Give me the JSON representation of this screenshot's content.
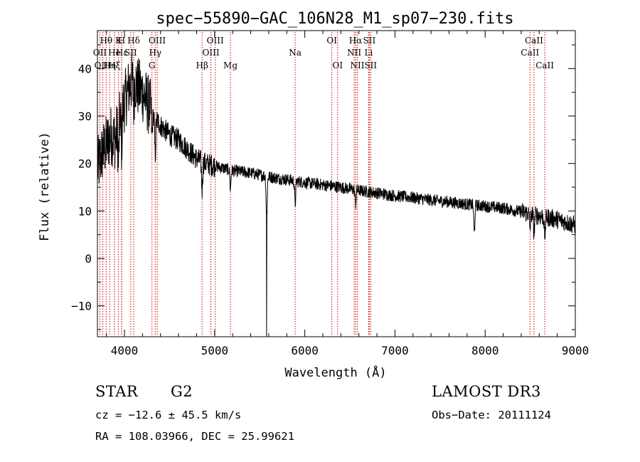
{
  "chart_data": {
    "type": "line",
    "title": "spec−55890−GAC_106N28_M1_sp07−230.fits",
    "xlabel": "Wavelength (Å)",
    "ylabel": "Flux (relative)",
    "xlim": [
      3700,
      9000
    ],
    "ylim": [
      -16.5,
      48
    ],
    "x_ticks": [
      4000,
      5000,
      6000,
      7000,
      8000,
      9000
    ],
    "y_ticks": [
      -10,
      0,
      10,
      20,
      30,
      40
    ],
    "x_tick_labels": [
      "4000",
      "5000",
      "6000",
      "7000",
      "8000",
      "9000"
    ],
    "y_tick_labels": [
      "−10",
      "0",
      "10",
      "20",
      "30",
      "40"
    ],
    "line_color": "#cc0000",
    "spectrum_color": "#000000",
    "lines": [
      {
        "name": "Hθ",
        "wave": 3797,
        "row": 0
      },
      {
        "name": "OII",
        "wave": 3727,
        "row": 1
      },
      {
        "name": "OIII",
        "wave": 3760,
        "row": 2
      },
      {
        "name": "K",
        "wave": 3934,
        "row": 0
      },
      {
        "name": "He",
        "wave": 3889,
        "row": 1
      },
      {
        "name": "Hη",
        "wave": 3835,
        "row": 2
      },
      {
        "name": "H",
        "wave": 3968,
        "row": 0
      },
      {
        "name": "Hδ",
        "wave": 4102,
        "row": 0
      },
      {
        "name": "Hε",
        "wave": 3970,
        "row": 1
      },
      {
        "name": "SII",
        "wave": 4070,
        "row": 1
      },
      {
        "name": "Hξ",
        "wave": 3889,
        "row": 2
      },
      {
        "name": "OIII",
        "wave": 4363,
        "row": 0
      },
      {
        "name": "Hγ",
        "wave": 4341,
        "row": 1
      },
      {
        "name": "G",
        "wave": 4305,
        "row": 2
      },
      {
        "name": "Hβ",
        "wave": 4861,
        "row": 2
      },
      {
        "name": "OIII",
        "wave": 5007,
        "row": 0
      },
      {
        "name": "OIII",
        "wave": 4959,
        "row": 1
      },
      {
        "name": "Mg",
        "wave": 5175,
        "row": 2
      },
      {
        "name": "Na",
        "wave": 5893,
        "row": 1
      },
      {
        "name": "OI",
        "wave": 6300,
        "row": 0
      },
      {
        "name": "OI",
        "wave": 6364,
        "row": 2
      },
      {
        "name": "Hα",
        "wave": 6563,
        "row": 0
      },
      {
        "name": "NII",
        "wave": 6548,
        "row": 1
      },
      {
        "name": "NII",
        "wave": 6583,
        "row": 2
      },
      {
        "name": "SII",
        "wave": 6716,
        "row": 0
      },
      {
        "name": "Li",
        "wave": 6708,
        "row": 1
      },
      {
        "name": "SII",
        "wave": 6731,
        "row": 2
      },
      {
        "name": "CaII",
        "wave": 8542,
        "row": 0
      },
      {
        "name": "CaII",
        "wave": 8498,
        "row": 1
      },
      {
        "name": "CaII",
        "wave": 8662,
        "row": 2
      }
    ],
    "spectrum_anchors": {
      "x": [
        3700,
        3750,
        3800,
        3850,
        3900,
        3950,
        4000,
        4050,
        4100,
        4150,
        4200,
        4300,
        4400,
        4500,
        4600,
        4700,
        4800,
        4900,
        5000,
        5100,
        5200,
        5400,
        5600,
        5800,
        6000,
        6200,
        6400,
        6600,
        6800,
        7000,
        7200,
        7400,
        7600,
        7800,
        8000,
        8200,
        8400,
        8600,
        8800,
        9000
      ],
      "y": [
        19,
        22,
        24,
        26,
        25,
        30,
        33,
        36,
        38,
        36,
        35,
        31,
        28,
        26,
        25,
        23,
        21,
        20,
        19.5,
        19,
        18.5,
        18,
        17.2,
        16.6,
        16,
        15.5,
        15,
        14.3,
        13.8,
        13.2,
        12.8,
        12.3,
        11.9,
        11.4,
        11,
        10.6,
        9.8,
        9,
        8.2,
        7
      ]
    },
    "absorption_features": [
      {
        "wave": 3934,
        "depth": 8
      },
      {
        "wave": 3968,
        "depth": 7
      },
      {
        "wave": 4102,
        "depth": 5
      },
      {
        "wave": 4305,
        "depth": 5
      },
      {
        "wave": 4341,
        "depth": 8
      },
      {
        "wave": 4861,
        "depth": 6
      },
      {
        "wave": 5175,
        "depth": 4
      },
      {
        "wave": 5577,
        "depth": 9
      },
      {
        "wave": 5893,
        "depth": 5
      },
      {
        "wave": 6563,
        "depth": 3
      },
      {
        "wave": 7880,
        "depth": 6
      },
      {
        "wave": 8498,
        "depth": 3
      },
      {
        "wave": 8542,
        "depth": 4
      },
      {
        "wave": 8662,
        "depth": 4
      }
    ],
    "spike": {
      "wave": 5577,
      "min": -16.5
    }
  },
  "info": {
    "object_class": "STAR",
    "subclass": "G2",
    "survey": "LAMOST DR3",
    "cz": "cz = −12.6 ± 45.5 km/s",
    "obs_date": "Obs−Date: 20111124",
    "coords": "RA = 108.03966, DEC =  25.99621"
  }
}
